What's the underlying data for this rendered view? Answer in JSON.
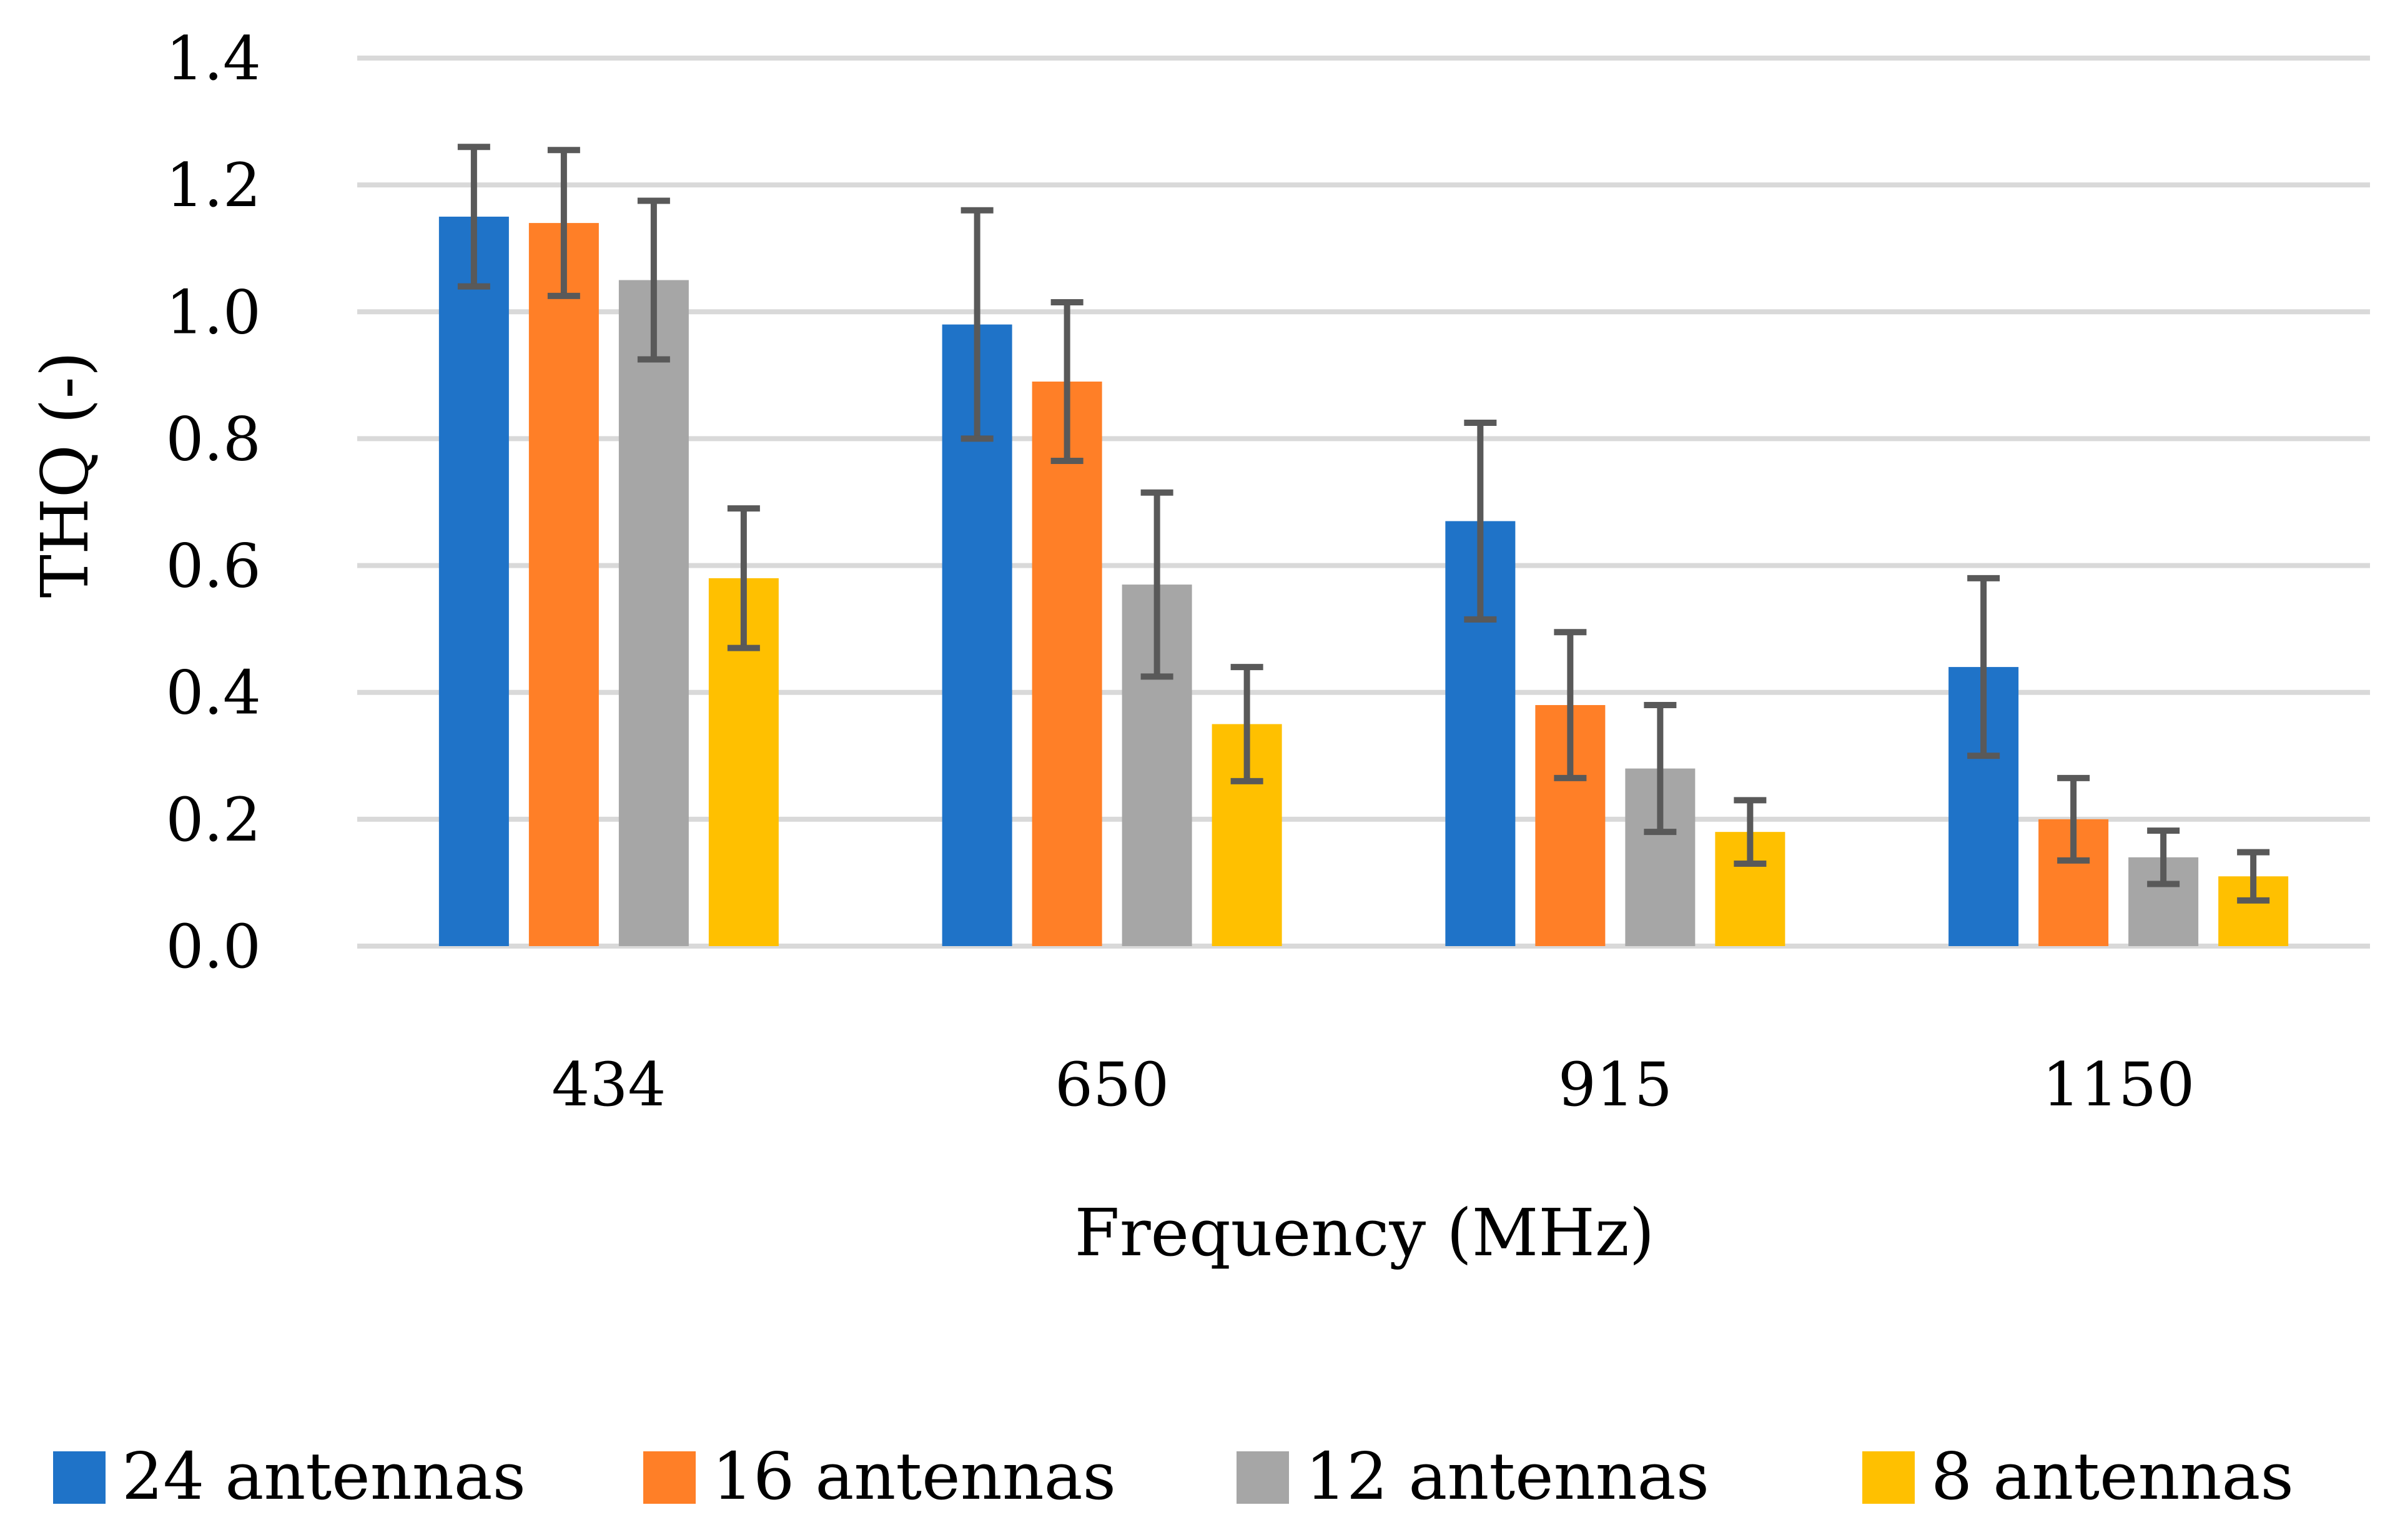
{
  "chart_data": {
    "type": "bar",
    "title": "",
    "xlabel": "Frequency (MHz)",
    "ylabel": "THQ (-)",
    "ylim": [
      0,
      1.4
    ],
    "yticks": [
      "0.0",
      "0.2",
      "0.4",
      "0.6",
      "0.8",
      "1.0",
      "1.2",
      "1.4"
    ],
    "grid": "horizontal",
    "legend_position": "bottom",
    "categories": [
      "434",
      "650",
      "915",
      "1150"
    ],
    "series": [
      {
        "name": "24 antennas",
        "color": "#1F73C8",
        "values": [
          1.15,
          0.98,
          0.67,
          0.44
        ],
        "errors": [
          0.11,
          0.18,
          0.155,
          0.14
        ]
      },
      {
        "name": "16 antennas",
        "color": "#FF7F27",
        "values": [
          1.14,
          0.89,
          0.38,
          0.2
        ],
        "errors": [
          0.115,
          0.125,
          0.115,
          0.065
        ]
      },
      {
        "name": "12 antennas",
        "color": "#A6A6A6",
        "values": [
          1.05,
          0.57,
          0.28,
          0.14
        ],
        "errors": [
          0.125,
          0.145,
          0.1,
          0.042
        ]
      },
      {
        "name": "8 antennas",
        "color": "#FFC000",
        "values": [
          0.58,
          0.35,
          0.18,
          0.11
        ],
        "errors": [
          0.11,
          0.09,
          0.05,
          0.038
        ]
      }
    ]
  }
}
